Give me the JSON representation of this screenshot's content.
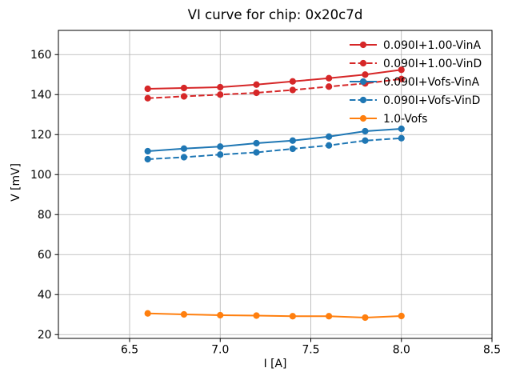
{
  "chart_data": {
    "type": "line",
    "title": "VI curve for chip: 0x20c7d",
    "xlabel": "I [A]",
    "ylabel": "V [mV]",
    "grid": true,
    "grid_color": "#b0b0b0",
    "background": "#ffffff",
    "xlim": [
      6.107,
      8.5
    ],
    "ylim": [
      18.1,
      172.1
    ],
    "xticks": [
      6.5,
      7.0,
      7.5,
      8.0,
      8.5
    ],
    "xtick_labels": [
      "6.5",
      "7.0",
      "7.5",
      "8.0",
      "8.5"
    ],
    "yticks": [
      20,
      40,
      60,
      80,
      100,
      120,
      140,
      160
    ],
    "ytick_labels": [
      "20",
      "40",
      "60",
      "80",
      "100",
      "120",
      "140",
      "160"
    ],
    "x": [
      6.6,
      6.8,
      7.0,
      7.2,
      7.4,
      7.6,
      7.8,
      8.0
    ],
    "series": [
      {
        "name": "0.090I+1.00-VinA",
        "color": "#d62728",
        "style": "solid",
        "marker": "circle",
        "values": [
          142.9,
          143.3,
          143.7,
          145.0,
          146.6,
          148.2,
          150.0,
          152.4
        ]
      },
      {
        "name": "0.090I+1.00-VinD",
        "color": "#d62728",
        "style": "dashed",
        "marker": "circle",
        "values": [
          138.2,
          139.1,
          140.0,
          140.9,
          142.3,
          144.0,
          145.6,
          147.8
        ]
      },
      {
        "name": "0.090I+Vofs-VinA",
        "color": "#1f77b4",
        "style": "solid",
        "marker": "circle",
        "values": [
          111.7,
          113.0,
          114.0,
          115.7,
          117.0,
          119.0,
          121.7,
          122.9
        ]
      },
      {
        "name": "0.090I+Vofs-VinD",
        "color": "#1f77b4",
        "style": "dashed",
        "marker": "circle",
        "values": [
          107.7,
          108.7,
          110.0,
          111.1,
          112.9,
          114.6,
          117.0,
          118.2
        ]
      },
      {
        "name": "1.0-Vofs",
        "color": "#ff7f0e",
        "style": "solid",
        "marker": "circle",
        "values": [
          30.6,
          30.1,
          29.7,
          29.5,
          29.2,
          29.2,
          28.5,
          29.3
        ]
      }
    ],
    "legend": {
      "position": "upper right",
      "frame": false
    }
  }
}
